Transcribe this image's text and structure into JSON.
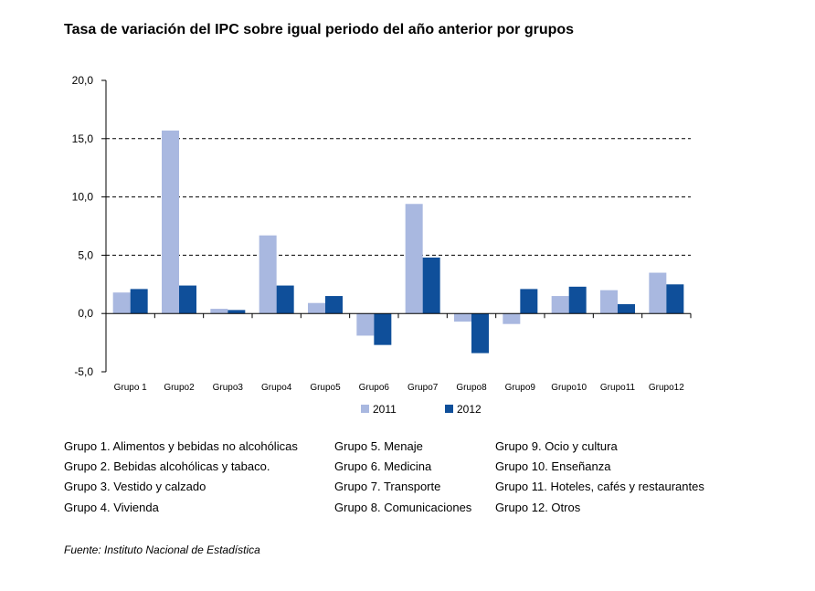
{
  "title": "Tasa de variación del IPC sobre igual periodo del año anterior por grupos",
  "chart_data": {
    "type": "bar",
    "categories": [
      "Grupo 1",
      "Grupo2",
      "Grupo3",
      "Grupo4",
      "Grupo5",
      "Grupo6",
      "Grupo7",
      "Grupo8",
      "Grupo9",
      "Grupo10",
      "Grupo11",
      "Grupo12"
    ],
    "series": [
      {
        "name": "2011",
        "color": "#a9b8e0",
        "values": [
          1.8,
          15.7,
          0.4,
          6.7,
          0.9,
          -1.9,
          9.4,
          -0.7,
          -0.9,
          1.5,
          2.0,
          3.5
        ]
      },
      {
        "name": "2012",
        "color": "#0f4f9a",
        "values": [
          2.1,
          2.4,
          0.3,
          2.4,
          1.5,
          -2.7,
          4.8,
          -3.4,
          2.1,
          2.3,
          0.8,
          2.5
        ]
      }
    ],
    "ylim": [
      -5,
      20
    ],
    "yticks": [
      "20,0",
      "15,0",
      "10,0",
      "5,0",
      "0,0",
      "-5,0"
    ],
    "ytick_values": [
      20,
      15,
      10,
      5,
      0,
      -5
    ],
    "gridlines": [
      15,
      10,
      5
    ],
    "legend_position": "bottom"
  },
  "notes": [
    [
      "Grupo 1. Alimentos y bebidas no alcohólicas",
      "Grupo 5. Menaje",
      "Grupo 9. Ocio y cultura"
    ],
    [
      "Grupo 2. Bebidas alcohólicas y  tabaco.",
      "Grupo 6. Medicina",
      "Grupo 10. Enseñanza"
    ],
    [
      "Grupo 3. Vestido y calzado",
      "Grupo 7. Transporte",
      "Grupo 11. Hoteles, cafés y restaurantes"
    ],
    [
      "Grupo 4. Vivienda",
      "Grupo 8. Comunicaciones",
      "Grupo 12. Otros"
    ]
  ],
  "source": "Fuente: Instituto Nacional de Estadística"
}
